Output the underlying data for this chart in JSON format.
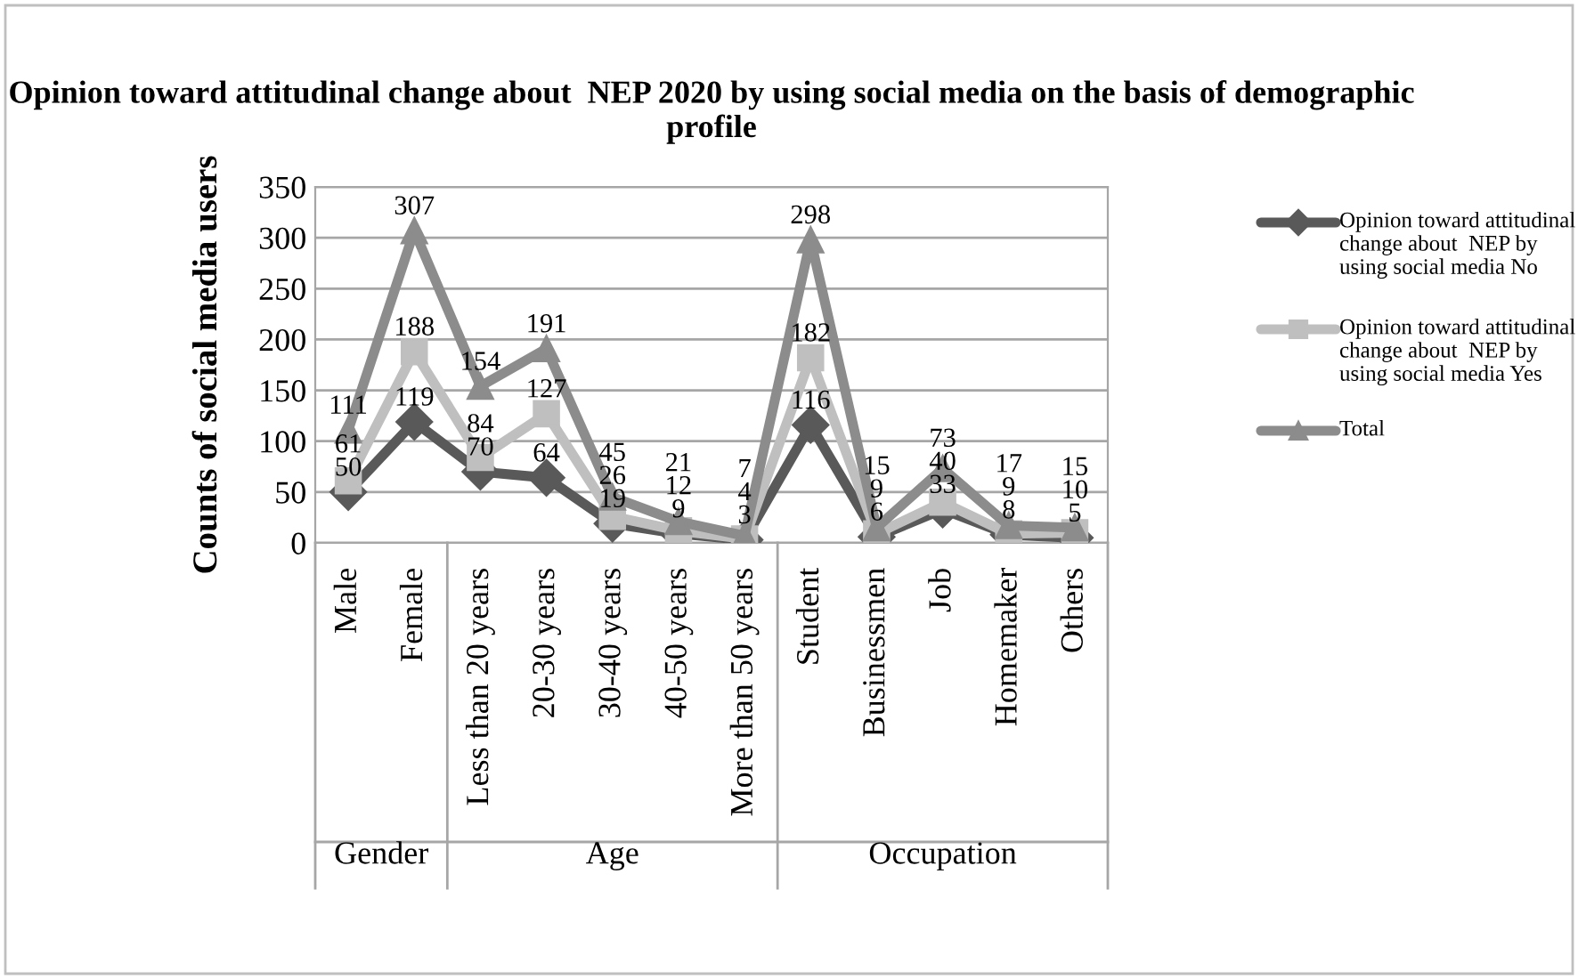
{
  "chart_data": {
    "type": "line",
    "title": "Opinion toward attitudinal change about  NEP 2020 by using social media on the basis of demographic profile",
    "ylabel": "Counts of social media users",
    "categories": [
      "Male",
      "Female",
      "Less than 20 years",
      "20-30 years",
      "30-40 years",
      "40-50 years",
      "More than 50 years",
      "Student",
      "Businessmen",
      "Job",
      "Homemaker",
      "Others"
    ],
    "series": [
      {
        "name": "Opinion toward attitudinal change about  NEP by using social media No",
        "color": "#595959",
        "marker": "diamond",
        "values": [
          50,
          119,
          70,
          64,
          19,
          9,
          3,
          116,
          6,
          33,
          8,
          5
        ]
      },
      {
        "name": "Opinion toward attitudinal change about  NEP by using social media Yes",
        "color": "#bfbfbf",
        "marker": "square",
        "values": [
          61,
          188,
          84,
          127,
          26,
          12,
          4,
          182,
          9,
          40,
          9,
          10
        ]
      },
      {
        "name": "Total",
        "color": "#8c8c8c",
        "marker": "triangle",
        "values": [
          111,
          307,
          154,
          191,
          45,
          21,
          7,
          298,
          15,
          73,
          17,
          15
        ]
      }
    ],
    "annotations": [
      "Gender",
      "Age",
      "Occupation"
    ],
    "ylim": [
      0,
      350
    ],
    "yticks": [
      0,
      50,
      100,
      150,
      200,
      250,
      300,
      350
    ],
    "grid": "y",
    "legend": "right",
    "data_labels": true,
    "line_style": "solid"
  }
}
